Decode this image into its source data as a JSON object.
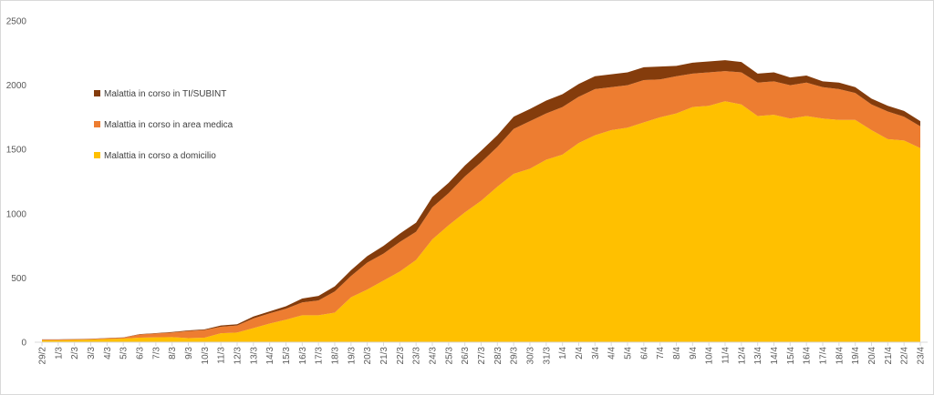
{
  "chart_data": {
    "type": "area",
    "stacked": true,
    "title": "",
    "xlabel": "",
    "ylabel": "",
    "ylim": [
      0,
      2500
    ],
    "yticks": [
      0,
      500,
      1000,
      1500,
      2000,
      2500
    ],
    "grid": false,
    "legend_position": "left, inside plot",
    "categories": [
      "29/2",
      "1/3",
      "2/3",
      "3/3",
      "4/3",
      "5/3",
      "6/3",
      "7/3",
      "8/3",
      "9/3",
      "10/3",
      "11/3",
      "12/3",
      "13/3",
      "14/3",
      "15/3",
      "16/3",
      "17/3",
      "18/3",
      "19/3",
      "20/3",
      "21/3",
      "22/3",
      "23/3",
      "24/3",
      "25/3",
      "26/3",
      "27/3",
      "28/3",
      "29/3",
      "30/3",
      "31/3",
      "1/4",
      "2/4",
      "3/4",
      "4/4",
      "5/4",
      "6/4",
      "7/4",
      "8/4",
      "9/4",
      "10/4",
      "11/4",
      "12/4",
      "13/4",
      "14/4",
      "15/4",
      "16/4",
      "17/4",
      "18/4",
      "19/4",
      "20/4",
      "21/4",
      "22/4",
      "23/4"
    ],
    "series": [
      {
        "name": "Malattia in corso a domicilio",
        "color": "#ffc000",
        "values": [
          15,
          15,
          18,
          20,
          25,
          28,
          35,
          38,
          40,
          32,
          35,
          70,
          75,
          110,
          145,
          175,
          210,
          210,
          230,
          350,
          410,
          480,
          550,
          640,
          800,
          910,
          1010,
          1100,
          1210,
          1310,
          1350,
          1420,
          1460,
          1550,
          1610,
          1650,
          1670,
          1710,
          1750,
          1780,
          1830,
          1840,
          1875,
          1850,
          1760,
          1770,
          1740,
          1760,
          1740,
          1730,
          1730,
          1650,
          1580,
          1570,
          1510
        ]
      },
      {
        "name": "Malattia in corso in area medica",
        "color": "#ed7d31",
        "values": [
          5,
          5,
          5,
          5,
          6,
          7,
          25,
          30,
          35,
          55,
          60,
          50,
          55,
          75,
          80,
          85,
          100,
          115,
          165,
          165,
          210,
          210,
          230,
          220,
          250,
          250,
          280,
          300,
          310,
          350,
          370,
          360,
          370,
          360,
          360,
          335,
          330,
          330,
          295,
          290,
          260,
          260,
          235,
          250,
          260,
          260,
          260,
          260,
          245,
          240,
          210,
          200,
          215,
          185,
          170
        ]
      },
      {
        "name": "Malattia in corso in TI/SUBINT",
        "color": "#843c0c",
        "values": [
          2,
          2,
          2,
          2,
          2,
          2,
          3,
          3,
          5,
          5,
          5,
          10,
          10,
          15,
          15,
          20,
          30,
          35,
          40,
          45,
          50,
          60,
          65,
          70,
          80,
          80,
          85,
          90,
          90,
          95,
          95,
          100,
          100,
          100,
          100,
          100,
          100,
          100,
          100,
          80,
          85,
          85,
          85,
          80,
          70,
          70,
          60,
          55,
          45,
          50,
          45,
          45,
          45,
          45,
          40
        ]
      }
    ]
  }
}
